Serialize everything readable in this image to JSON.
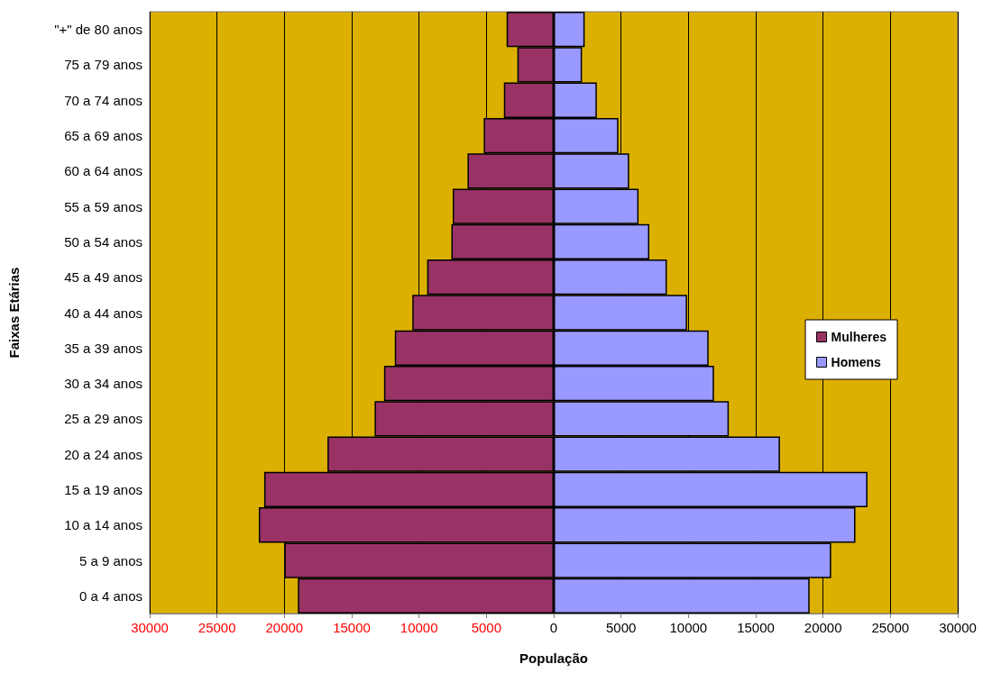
{
  "chart_data": {
    "type": "bar",
    "orientation": "horizontal",
    "xlabel": "População",
    "ylabel": "Faixas Etárias",
    "categories": [
      "\"+\" de 80 anos",
      "75 a 79 anos",
      "70 a 74 anos",
      "65 a 69 anos",
      "60 a 64 anos",
      "55 a 59 anos",
      "50 a 54 anos",
      "45 a 49 anos",
      "40 a 44 anos",
      "35 a 39 anos",
      "30 a 34 anos",
      "25 a 29 anos",
      "20 a 24 anos",
      "15 a 19 anos",
      "10 a 14 anos",
      "5 a 9 anos",
      "0 a 4 anos"
    ],
    "series": [
      {
        "name": "Mulheres",
        "color": "#993366",
        "values": [
          -3500,
          -2700,
          -3700,
          -5200,
          -6400,
          -7500,
          -7600,
          -9400,
          -10500,
          -11800,
          -12600,
          -13300,
          -16800,
          -21500,
          -21900,
          -20000,
          -19000
        ]
      },
      {
        "name": "Homens",
        "color": "#9999ff",
        "values": [
          2300,
          2100,
          3200,
          4800,
          5600,
          6300,
          7100,
          8400,
          9900,
          11500,
          11900,
          13000,
          16800,
          23300,
          22400,
          20600,
          19000
        ]
      }
    ],
    "xlim": [
      -30000,
      30000
    ],
    "xticks": [
      {
        "value": -30000,
        "label": "30000"
      },
      {
        "value": -25000,
        "label": "25000"
      },
      {
        "value": -20000,
        "label": "20000"
      },
      {
        "value": -15000,
        "label": "15000"
      },
      {
        "value": -10000,
        "label": "10000"
      },
      {
        "value": -5000,
        "label": "5000"
      },
      0,
      5000,
      10000,
      15000,
      20000,
      25000,
      30000
    ],
    "stacked": true,
    "grid": "x",
    "legend": "right"
  }
}
